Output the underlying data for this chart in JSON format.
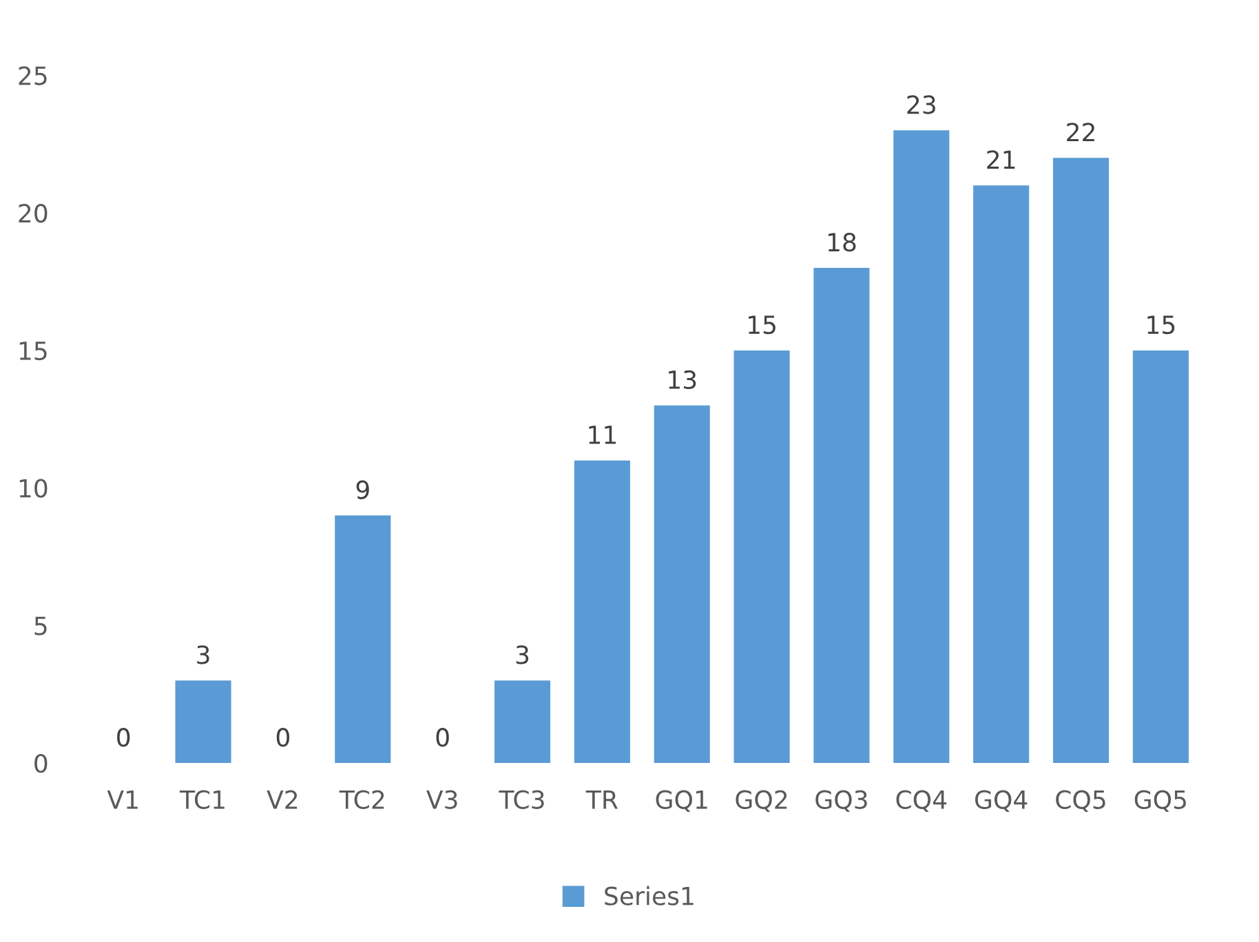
{
  "chart_data": {
    "type": "bar",
    "categories": [
      "V1",
      "TC1",
      "V2",
      "TC2",
      "V3",
      "TC3",
      "TR",
      "GQ1",
      "GQ2",
      "GQ3",
      "CQ4",
      "GQ4",
      "CQ5",
      "GQ5"
    ],
    "series": [
      {
        "name": "Series1",
        "color": "#5b9bd5",
        "values": [
          0,
          3,
          0,
          9,
          0,
          3,
          11,
          13,
          15,
          18,
          23,
          21,
          22,
          15
        ]
      }
    ],
    "ylim": [
      0,
      25
    ],
    "yticks": [
      0,
      5,
      10,
      15,
      20,
      25
    ],
    "data_labels": true,
    "grid": false,
    "legend": "bottom"
  }
}
